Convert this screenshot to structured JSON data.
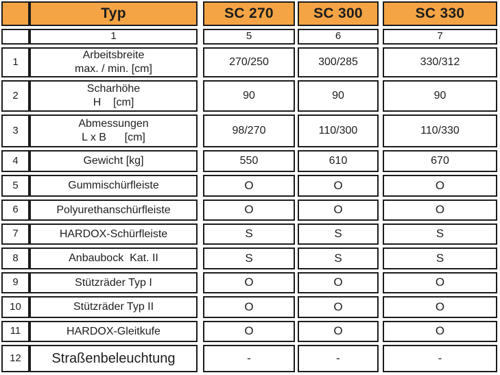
{
  "colors": {
    "header_bg": "#f4a444",
    "border": "#1b1b1b",
    "text": "#1d1d1d"
  },
  "table": {
    "header": {
      "corner": "",
      "typ": "Typ",
      "models": [
        "SC 270",
        "SC 300",
        "SC 330"
      ]
    },
    "index_row": {
      "corner": "",
      "typ_index": "1",
      "values": [
        "5",
        "6",
        "7"
      ]
    },
    "rows": [
      {
        "num": "1",
        "label": "Arbeitsbreite",
        "label2": "max. / min. [cm]",
        "values": [
          "270/250",
          "300/285",
          "330/312"
        ]
      },
      {
        "num": "2",
        "label": "Scharhöhe",
        "label2": "H    [cm]",
        "values": [
          "90",
          "90",
          "90"
        ]
      },
      {
        "num": "3",
        "label": "Abmessungen",
        "label2": "L x B      [cm]",
        "values": [
          "98/270",
          "110/300",
          "110/330"
        ]
      },
      {
        "num": "4",
        "label": "Gewicht [kg]",
        "label2": "",
        "values": [
          "550",
          "610",
          "670"
        ]
      },
      {
        "num": "5",
        "label": "Gummischürfleiste",
        "label2": "",
        "values": [
          "O",
          "O",
          "O"
        ]
      },
      {
        "num": "6",
        "label": "Polyurethanschürfleiste",
        "label2": "",
        "values": [
          "O",
          "O",
          "O"
        ]
      },
      {
        "num": "7",
        "label": "HARDOX-Schürfleiste",
        "label2": "",
        "values": [
          "S",
          "S",
          "S"
        ]
      },
      {
        "num": "8",
        "label": "Anbaubock  Kat. II",
        "label2": "",
        "values": [
          "S",
          "S",
          "S"
        ]
      },
      {
        "num": "9",
        "label": "Stützräder Typ I",
        "label2": "",
        "values": [
          "O",
          "O",
          "O"
        ]
      },
      {
        "num": "10",
        "label": "Stützräder Typ II",
        "label2": "",
        "values": [
          "O",
          "O",
          "O"
        ]
      },
      {
        "num": "11",
        "label": "HARDOX-Gleitkufe",
        "label2": "",
        "values": [
          "O",
          "O",
          "O"
        ]
      },
      {
        "num": "12",
        "label": "Straßenbeleuchtung",
        "label2": "",
        "values": [
          "-",
          "-",
          "-"
        ]
      }
    ]
  }
}
